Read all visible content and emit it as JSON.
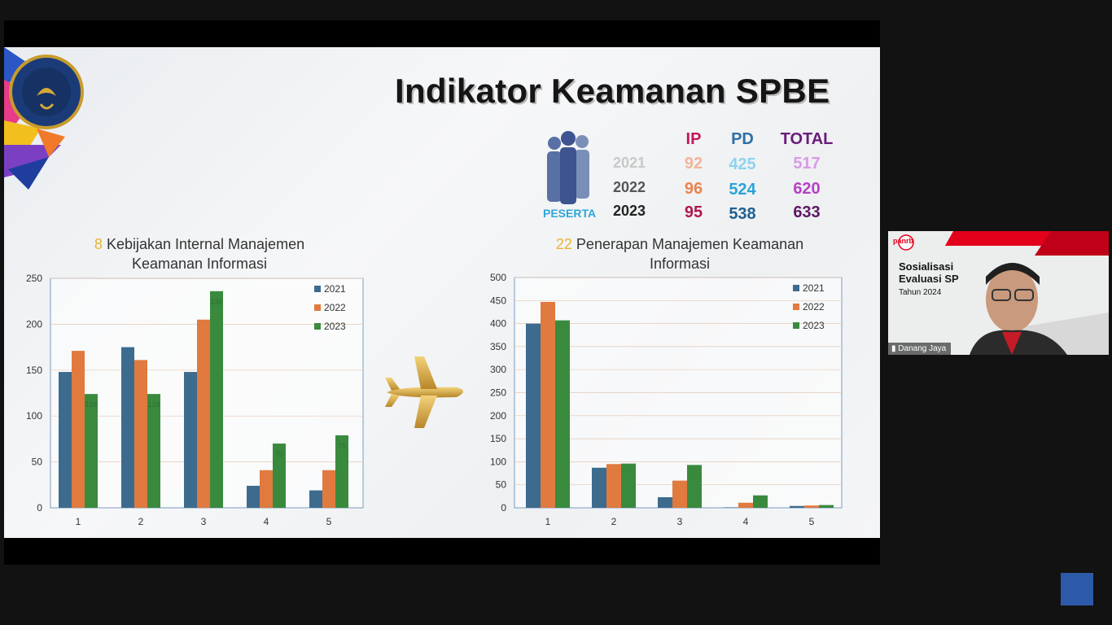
{
  "slide": {
    "title": "Indikator Keamanan SPBE",
    "peserta_label": "PESERTA",
    "stats": {
      "headers": [
        "IP",
        "PD",
        "TOTAL"
      ],
      "rows": [
        {
          "year": "2021",
          "ip": "92",
          "pd": "425",
          "total": "517"
        },
        {
          "year": "2022",
          "ip": "96",
          "pd": "524",
          "total": "620"
        },
        {
          "year": "2023",
          "ip": "95",
          "pd": "538",
          "total": "633"
        }
      ]
    },
    "chart1_heading": {
      "number": "8",
      "line1": "Kebijakan Internal Manajemen",
      "line2": "Keamanan Informasi"
    },
    "chart2_heading": {
      "number": "22",
      "line1": "Penerapan Manajemen Keamanan",
      "line2": "Informasi"
    }
  },
  "colors": {
    "series_2021": "#3d6b8e",
    "series_2022": "#e07a3f",
    "series_2023": "#3a8a3e"
  },
  "chart_data": [
    {
      "type": "bar",
      "categories": [
        "1",
        "2",
        "3",
        "4",
        "5"
      ],
      "series": [
        {
          "name": "2021",
          "values": [
            148,
            175,
            148,
            24,
            19
          ]
        },
        {
          "name": "2022",
          "values": [
            171,
            161,
            205,
            41,
            41
          ]
        },
        {
          "name": "2023",
          "values": [
            124,
            124,
            236,
            70,
            79
          ]
        }
      ],
      "ylim": [
        0,
        250
      ],
      "yticks": [
        0,
        50,
        100,
        150,
        200,
        250
      ],
      "data_labels": [
        "124",
        "124",
        "236",
        "70",
        "79"
      ],
      "legend": "top-right"
    },
    {
      "type": "bar",
      "categories": [
        "1",
        "2",
        "3",
        "4",
        "5"
      ],
      "series": [
        {
          "name": "2021",
          "values": [
            400,
            87,
            23,
            1,
            4
          ]
        },
        {
          "name": "2022",
          "values": [
            447,
            95,
            59,
            11,
            5
          ]
        },
        {
          "name": "2023",
          "values": [
            407,
            96,
            93,
            27,
            6
          ]
        }
      ],
      "ylim": [
        0,
        500
      ],
      "yticks": [
        0,
        50,
        100,
        150,
        200,
        250,
        300,
        350,
        400,
        450,
        500
      ],
      "legend": "top-right"
    }
  ],
  "camera": {
    "name": "Danang Jaya",
    "badge_line1": "Sosialisasi",
    "badge_line2": "Evaluasi SP",
    "badge_line3": "Tahun 2024",
    "brand": "panrb"
  }
}
